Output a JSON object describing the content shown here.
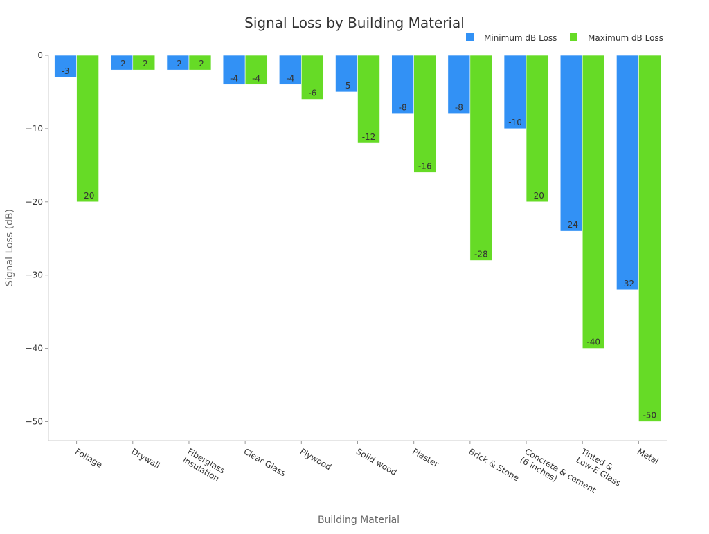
{
  "chart_data": {
    "type": "bar",
    "title": "Signal Loss by Building Material",
    "xlabel": "Building Material",
    "ylabel": "Signal Loss (dB)",
    "categories": [
      "Foliage",
      "Drywall",
      "Fiberglass\nInsulation",
      "Clear Glass",
      "Plywood",
      "Solid wood",
      "Plaster",
      "Brick & Stone",
      "Concrete & cement\n(6 inches)",
      "Tinted &\nLow-E Glass",
      "Metal"
    ],
    "series": [
      {
        "name": "Minimum dB Loss",
        "color": "#3291F5",
        "values": [
          -3,
          -2,
          -2,
          -4,
          -4,
          -5,
          -8,
          -8,
          -10,
          -24,
          -32
        ]
      },
      {
        "name": "Maximum dB Loss",
        "color": "#66DB26",
        "values": [
          -20,
          -2,
          -2,
          -4,
          -6,
          -12,
          -16,
          -28,
          -20,
          -40,
          -50
        ]
      }
    ],
    "yticks": [
      0,
      -10,
      -20,
      -30,
      -40,
      -50
    ],
    "ytick_labels": [
      "0",
      "−10",
      "−20",
      "−30",
      "−40",
      "−50"
    ],
    "ylim": [
      -52.6,
      0
    ],
    "grid": false,
    "legend_position": "top-right"
  }
}
